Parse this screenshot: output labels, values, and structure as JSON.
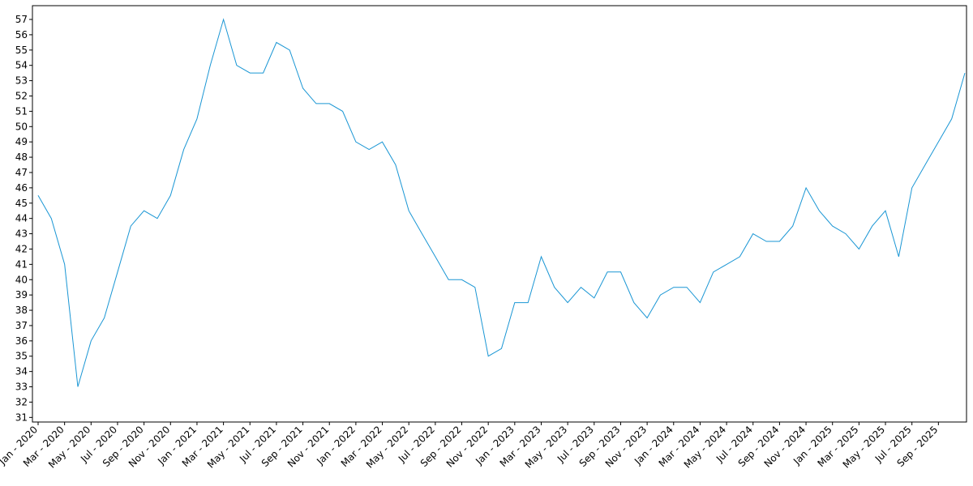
{
  "chart_data": {
    "type": "line",
    "categories": [
      "Jan - 2020",
      null,
      "Mar - 2020",
      null,
      "May - 2020",
      null,
      "Jul - 2020",
      null,
      "Sep - 2020",
      null,
      "Nov - 2020",
      null,
      "Jan - 2021",
      null,
      "Mar - 2021",
      null,
      "May - 2021",
      null,
      "Jul - 2021",
      null,
      "Sep - 2021",
      null,
      "Nov - 2021",
      null,
      "Jan - 2022",
      null,
      "Mar - 2022",
      null,
      "May - 2022",
      null,
      "Jul - 2022",
      null,
      "Sep - 2022",
      null,
      "Nov - 2022",
      null,
      "Jan - 2023",
      null,
      "Mar - 2023",
      null,
      "May - 2023",
      null,
      "Jul - 2023",
      null,
      "Sep - 2023",
      null,
      "Nov - 2023",
      null,
      "Jan - 2024",
      null,
      "Mar - 2024",
      null,
      "May - 2024",
      null,
      "Jul - 2024",
      null,
      "Sep - 2024",
      null,
      "Nov - 2024",
      null,
      "Jan - 2025",
      null,
      "Mar - 2025",
      null,
      "May - 2025",
      null,
      "Jul - 2025",
      null,
      "Sep - 2025",
      null,
      null
    ],
    "series": [
      {
        "color": "#1a96d4",
        "values": [
          45.5,
          44,
          41,
          33,
          36,
          37.5,
          40.5,
          43.5,
          44.5,
          44,
          45.5,
          48.5,
          50.5,
          54,
          57,
          54,
          53.5,
          53.5,
          55.5,
          55,
          52.5,
          51.5,
          51.5,
          51,
          49,
          48.5,
          49,
          47.5,
          44.5,
          43,
          41.5,
          40,
          40,
          39.5,
          35,
          35.5,
          38.5,
          38.5,
          41.5,
          39.5,
          38.5,
          39.5,
          38.8,
          40.5,
          40.5,
          38.5,
          37.5,
          39,
          39.5,
          39.5,
          38.5,
          40.5,
          41,
          41.5,
          43,
          42.5,
          42.5,
          43.5,
          46,
          44.5,
          43.5,
          43,
          42,
          43.5,
          44.5,
          41.5,
          46,
          47.5,
          49,
          50.5,
          53.5
        ]
      }
    ],
    "ylim": [
      30.7,
      57.9
    ],
    "yticks": [
      31,
      32,
      33,
      34,
      35,
      36,
      37,
      38,
      39,
      40,
      41,
      42,
      43,
      44,
      45,
      46,
      47,
      48,
      49,
      50,
      51,
      52,
      53,
      54,
      55,
      56,
      57
    ],
    "grid": false
  }
}
